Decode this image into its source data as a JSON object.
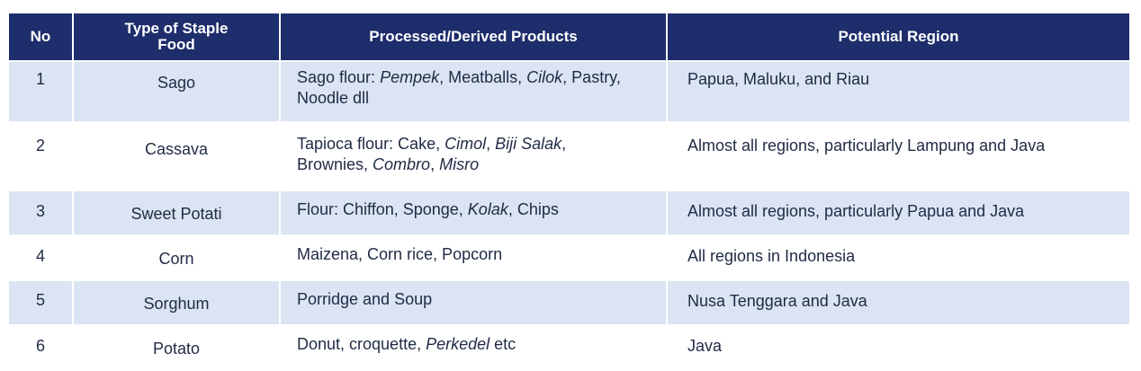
{
  "table": {
    "headers": {
      "no": "No",
      "food_line1": "Type of Staple",
      "food_line2": "Food",
      "products": "Processed/Derived Products",
      "region": "Potential Region"
    },
    "rows": [
      {
        "no": "1",
        "food": "Sago",
        "prod_a": "Sago flour: ",
        "prod_b": "Pempek",
        "prod_c": ", Meatballs, ",
        "prod_d": "Cilok",
        "prod_e": ", Pastry,",
        "prod_f": "Noodle dll",
        "region": "Papua, Maluku, and Riau"
      },
      {
        "no": "2",
        "food": "Cassava",
        "prod_a": "Tapioca flour: Cake, ",
        "prod_b": "Cimol",
        "prod_c": ", ",
        "prod_d": "Biji Salak",
        "prod_e": ",",
        "prod_f": "Brownies, ",
        "prod_g": "Combro",
        "prod_h": ", ",
        "prod_i": "Misro",
        "region": "Almost all regions, particularly Lampung and Java"
      },
      {
        "no": "3",
        "food": "Sweet Potati",
        "prod_a": "Flour: Chiffon, Sponge, ",
        "prod_b": "Kolak",
        "prod_c": ", Chips",
        "region": "Almost all regions, particularly Papua and Java"
      },
      {
        "no": "4",
        "food": "Corn",
        "prod_a": "Maizena, Corn rice, Popcorn",
        "region": "All regions in Indonesia"
      },
      {
        "no": "5",
        "food": "Sorghum",
        "prod_a": "Porridge and Soup",
        "region": "Nusa Tenggara and Java"
      },
      {
        "no": "6",
        "food": "Potato",
        "prod_a": "Donut, croquette, ",
        "prod_b": "Perkedel",
        "prod_c": " etc",
        "region": "Java"
      }
    ]
  },
  "colors": {
    "header_bg": "#1e2d6b",
    "header_text": "#ffffff",
    "shaded_row_bg": "#dbe4f3",
    "text": "#1f2a44"
  }
}
